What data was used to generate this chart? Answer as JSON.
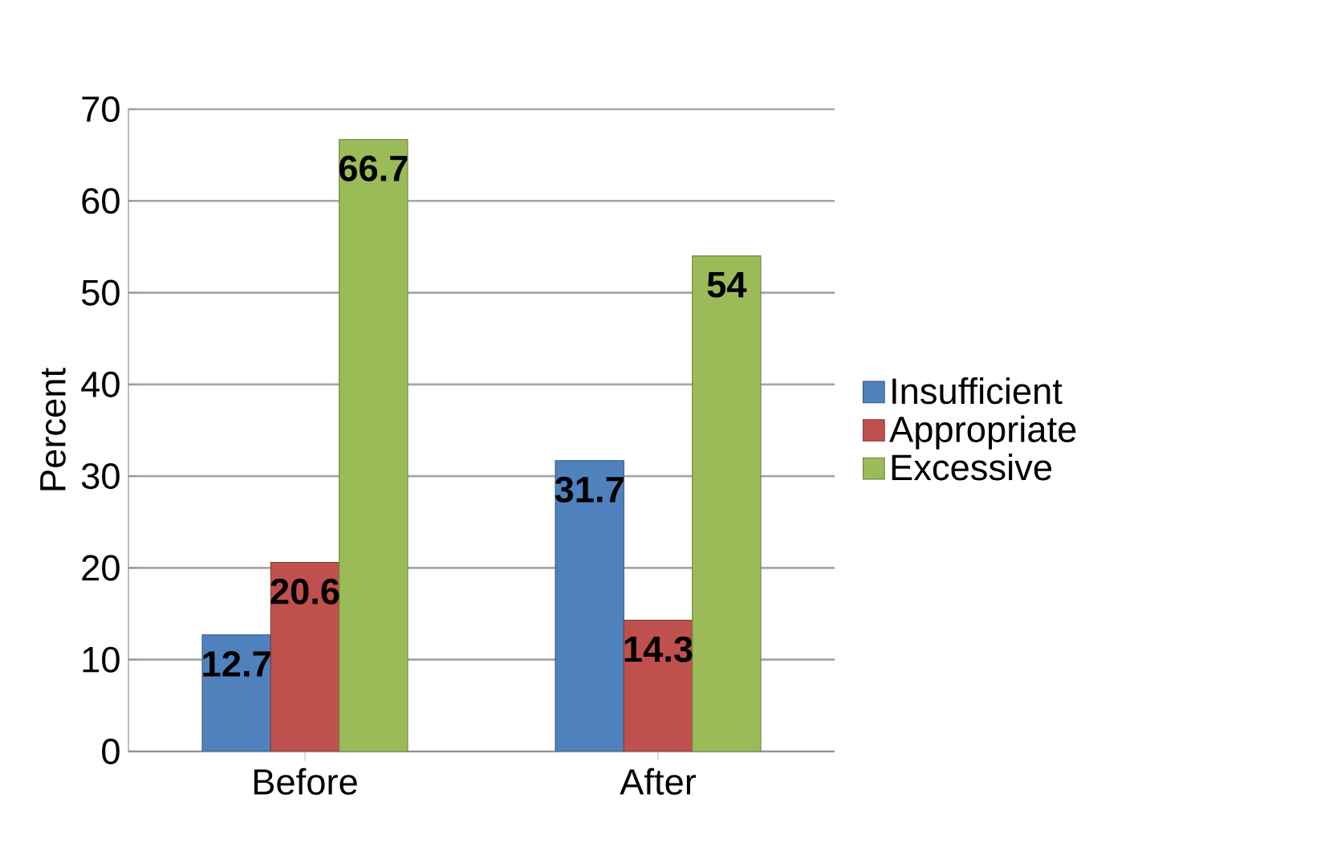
{
  "chart_data": {
    "type": "bar",
    "ylabel": "Percent",
    "categories": [
      "Before",
      "After"
    ],
    "series": [
      {
        "name": "Insufficient",
        "color": "#4f81bd",
        "values": [
          12.7,
          31.7
        ]
      },
      {
        "name": "Appropriate",
        "color": "#c0504d",
        "values": [
          20.6,
          14.3
        ]
      },
      {
        "name": "Excessive",
        "color": "#9bbb59",
        "values": [
          66.7,
          54
        ]
      }
    ],
    "ylim": [
      0,
      70
    ],
    "yticks": [
      0,
      10,
      20,
      30,
      40,
      50,
      60,
      70
    ],
    "grid": "y",
    "legend": "right",
    "data_labels": true
  }
}
